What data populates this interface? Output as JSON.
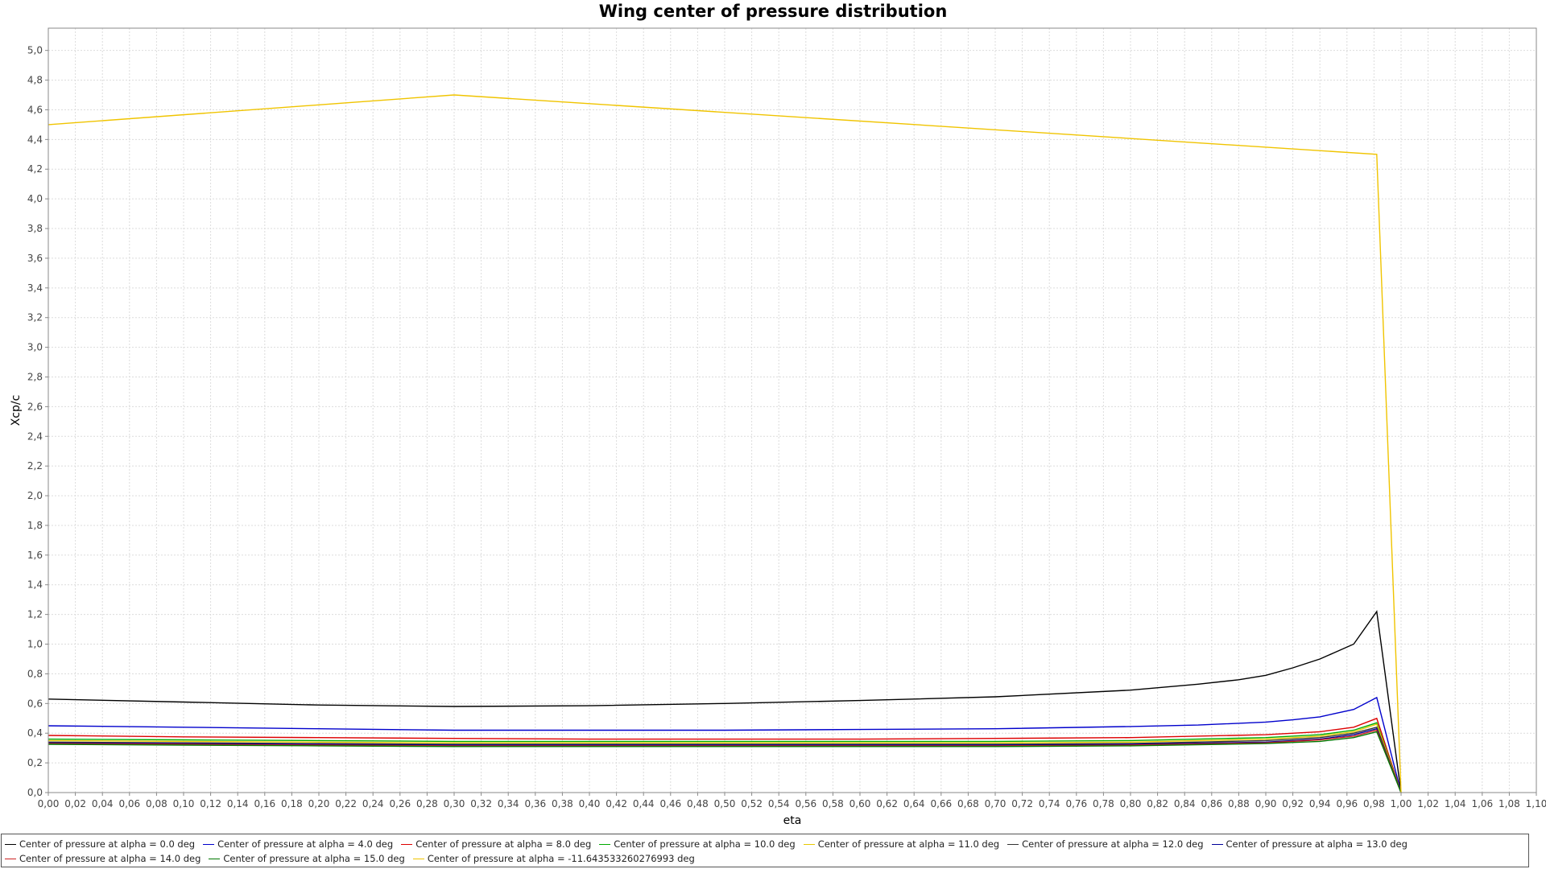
{
  "chart_data": {
    "type": "line",
    "title": "Wing center of pressure distribution",
    "xlabel": "eta",
    "ylabel": "Xcp/c",
    "xlim": [
      0,
      1.1
    ],
    "ylim": [
      0,
      5.15
    ],
    "x_ticks": [
      "0,00",
      "0,02",
      "0,04",
      "0,06",
      "0,08",
      "0,10",
      "0,12",
      "0,14",
      "0,16",
      "0,18",
      "0,20",
      "0,22",
      "0,24",
      "0,26",
      "0,28",
      "0,30",
      "0,32",
      "0,34",
      "0,36",
      "0,38",
      "0,40",
      "0,42",
      "0,44",
      "0,46",
      "0,48",
      "0,50",
      "0,52",
      "0,54",
      "0,56",
      "0,58",
      "0,60",
      "0,62",
      "0,64",
      "0,66",
      "0,68",
      "0,70",
      "0,72",
      "0,74",
      "0,76",
      "0,78",
      "0,80",
      "0,82",
      "0,84",
      "0,86",
      "0,88",
      "0,90",
      "0,92",
      "0,94",
      "0,96",
      "0,98",
      "1,00",
      "1,02",
      "1,04",
      "1,06",
      "1,08",
      "1,10"
    ],
    "y_ticks": [
      "0,0",
      "0,2",
      "0,4",
      "0,6",
      "0,8",
      "1,0",
      "1,2",
      "1,4",
      "1,6",
      "1,8",
      "2,0",
      "2,2",
      "2,4",
      "2,6",
      "2,8",
      "3,0",
      "3,2",
      "3,4",
      "3,6",
      "3,8",
      "4,0",
      "4,2",
      "4,4",
      "4,6",
      "4,8",
      "5,0"
    ],
    "grid": true,
    "legend_position": "bottom",
    "series": [
      {
        "name": "Center of pressure at alpha = 0.0 deg",
        "color": "#000000",
        "x": [
          0,
          0.1,
          0.2,
          0.3,
          0.4,
          0.5,
          0.6,
          0.7,
          0.8,
          0.85,
          0.88,
          0.9,
          0.92,
          0.94,
          0.95,
          0.965,
          0.982,
          1.0
        ],
        "y": [
          0.63,
          0.61,
          0.59,
          0.58,
          0.585,
          0.6,
          0.62,
          0.645,
          0.69,
          0.73,
          0.76,
          0.79,
          0.84,
          0.9,
          0.94,
          1.0,
          1.22,
          0.0
        ]
      },
      {
        "name": "Center of pressure at alpha = 4.0 deg",
        "color": "#0000cc",
        "x": [
          0,
          0.1,
          0.2,
          0.3,
          0.4,
          0.5,
          0.6,
          0.7,
          0.8,
          0.85,
          0.9,
          0.92,
          0.94,
          0.95,
          0.965,
          0.982,
          1.0
        ],
        "y": [
          0.45,
          0.44,
          0.43,
          0.42,
          0.42,
          0.42,
          0.425,
          0.43,
          0.445,
          0.455,
          0.475,
          0.49,
          0.51,
          0.53,
          0.56,
          0.64,
          0.0
        ]
      },
      {
        "name": "Center of pressure at alpha = 8.0 deg",
        "color": "#dd0000",
        "x": [
          0,
          0.1,
          0.2,
          0.3,
          0.4,
          0.5,
          0.6,
          0.7,
          0.8,
          0.9,
          0.94,
          0.965,
          0.982,
          1.0
        ],
        "y": [
          0.385,
          0.375,
          0.37,
          0.365,
          0.36,
          0.36,
          0.36,
          0.365,
          0.37,
          0.39,
          0.41,
          0.44,
          0.5,
          0.0
        ]
      },
      {
        "name": "Center of pressure at alpha = 10.0 deg",
        "color": "#00aa00",
        "x": [
          0,
          0.1,
          0.2,
          0.3,
          0.4,
          0.5,
          0.6,
          0.7,
          0.8,
          0.9,
          0.94,
          0.965,
          0.982,
          1.0
        ],
        "y": [
          0.36,
          0.355,
          0.35,
          0.345,
          0.345,
          0.345,
          0.345,
          0.345,
          0.35,
          0.37,
          0.39,
          0.42,
          0.47,
          0.0
        ]
      },
      {
        "name": "Center of pressure at alpha = 11.0 deg",
        "color": "#e8c800",
        "x": [
          0,
          0.1,
          0.2,
          0.3,
          0.4,
          0.5,
          0.6,
          0.7,
          0.8,
          0.9,
          0.94,
          0.965,
          0.982,
          1.0
        ],
        "y": [
          0.35,
          0.345,
          0.34,
          0.335,
          0.335,
          0.335,
          0.335,
          0.335,
          0.34,
          0.36,
          0.38,
          0.41,
          0.46,
          0.0
        ]
      },
      {
        "name": "Center of pressure at alpha = 12.0 deg",
        "color": "#333333",
        "x": [
          0,
          0.1,
          0.2,
          0.3,
          0.4,
          0.5,
          0.6,
          0.7,
          0.8,
          0.9,
          0.94,
          0.965,
          0.982,
          1.0
        ],
        "y": [
          0.34,
          0.335,
          0.33,
          0.325,
          0.325,
          0.325,
          0.325,
          0.325,
          0.33,
          0.35,
          0.37,
          0.4,
          0.44,
          0.0
        ]
      },
      {
        "name": "Center of pressure at alpha = 13.0 deg",
        "color": "#000099",
        "x": [
          0,
          0.1,
          0.2,
          0.3,
          0.4,
          0.5,
          0.6,
          0.7,
          0.8,
          0.9,
          0.94,
          0.965,
          0.982,
          1.0
        ],
        "y": [
          0.335,
          0.33,
          0.325,
          0.32,
          0.32,
          0.32,
          0.32,
          0.32,
          0.325,
          0.34,
          0.36,
          0.39,
          0.43,
          0.0
        ]
      },
      {
        "name": "Center of pressure at alpha = 14.0 deg",
        "color": "#cc2222",
        "x": [
          0,
          0.1,
          0.2,
          0.3,
          0.4,
          0.5,
          0.6,
          0.7,
          0.8,
          0.9,
          0.94,
          0.965,
          0.982,
          1.0
        ],
        "y": [
          0.33,
          0.325,
          0.32,
          0.315,
          0.315,
          0.315,
          0.315,
          0.315,
          0.32,
          0.335,
          0.355,
          0.38,
          0.42,
          0.0
        ]
      },
      {
        "name": "Center of pressure at alpha = 15.0 deg",
        "color": "#007700",
        "x": [
          0,
          0.1,
          0.2,
          0.3,
          0.4,
          0.5,
          0.6,
          0.7,
          0.8,
          0.9,
          0.94,
          0.965,
          0.982,
          1.0
        ],
        "y": [
          0.325,
          0.32,
          0.315,
          0.31,
          0.31,
          0.31,
          0.31,
          0.31,
          0.315,
          0.33,
          0.345,
          0.37,
          0.41,
          0.0
        ]
      },
      {
        "name": "Center of pressure at alpha = -11.643533260276993 deg",
        "color": "#f0c400",
        "x": [
          0,
          0.3,
          0.982,
          1.0
        ],
        "y": [
          4.5,
          4.7,
          4.3,
          0.0
        ]
      }
    ]
  }
}
